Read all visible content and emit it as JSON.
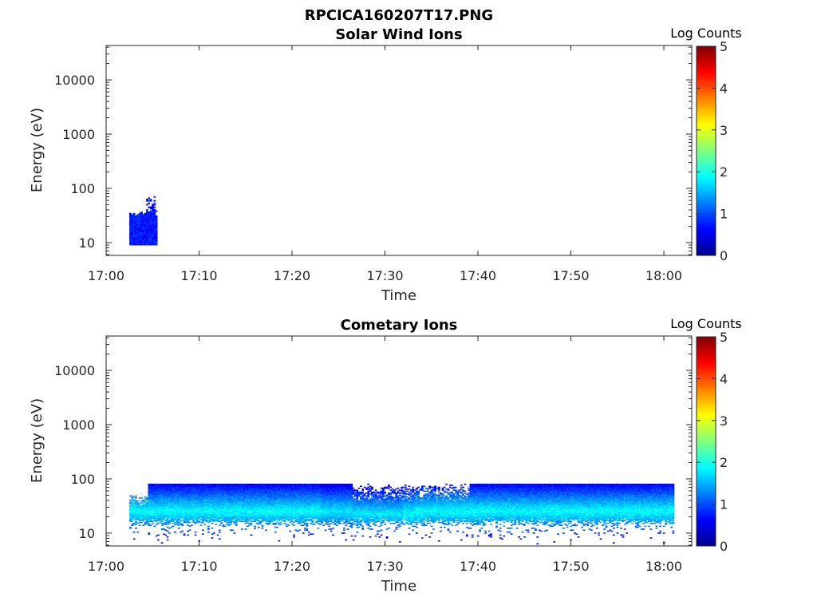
{
  "figure": {
    "title": "RPCICA160207T17.PNG",
    "colorbar_label": "Log Counts",
    "colorbar_ticks": [
      "0",
      "1",
      "2",
      "3",
      "4",
      "5"
    ],
    "colormap": "jet"
  },
  "chart_data": [
    {
      "type": "heatmap",
      "title": "Solar Wind Ions",
      "xlabel": "Time",
      "ylabel": "Energy (eV)",
      "x_ticks": [
        "17:00",
        "17:10",
        "17:20",
        "17:30",
        "17:40",
        "17:50",
        "18:00"
      ],
      "y_ticks": [
        "10",
        "100",
        "1000",
        "10000"
      ],
      "xlim": [
        "17:00",
        "18:03"
      ],
      "ylim": [
        5.8,
        43000
      ],
      "yscale": "log",
      "clim": [
        0,
        5
      ],
      "grid": false,
      "data_regions": [
        {
          "t_start": "17:02.5",
          "t_end": "17:05.5",
          "energy_low": 9,
          "energy_high": 30,
          "peak_energy": 80,
          "log_counts_max": 0.9
        }
      ]
    },
    {
      "type": "heatmap",
      "title": "Cometary Ions",
      "xlabel": "Time",
      "ylabel": "Energy (eV)",
      "x_ticks": [
        "17:00",
        "17:10",
        "17:20",
        "17:30",
        "17:40",
        "17:50",
        "18:00"
      ],
      "y_ticks": [
        "10",
        "100",
        "1000",
        "10000"
      ],
      "xlim": [
        "17:00",
        "18:03"
      ],
      "ylim": [
        5.8,
        43000
      ],
      "yscale": "log",
      "clim": [
        0,
        5
      ],
      "grid": false,
      "data_regions": [
        {
          "t_start": "17:02.5",
          "t_end": "18:01",
          "energy_low": 8,
          "energy_high": 80,
          "core_energy": 25,
          "log_counts_max": 2.0
        }
      ]
    }
  ]
}
